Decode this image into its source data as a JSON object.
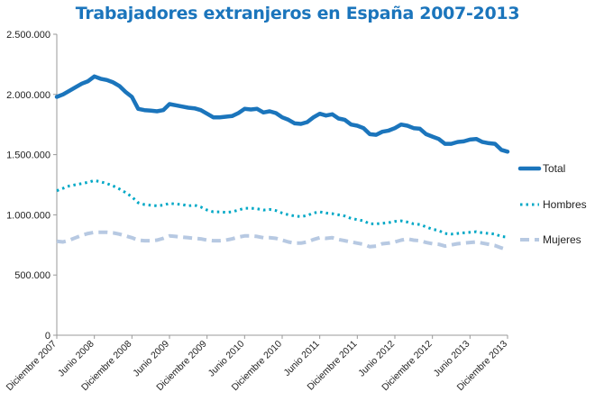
{
  "chart_data": {
    "type": "line",
    "title": "Trabajadores extranjeros en España 2007-2013",
    "xlabel": "",
    "ylabel": "",
    "ylim": [
      0,
      2500000
    ],
    "yticks": [
      0,
      500000,
      1000000,
      1500000,
      2000000,
      2500000
    ],
    "ytick_labels": [
      "0",
      "500.000",
      "1.000.000",
      "1.500.000",
      "2.000.000",
      "2.500.000"
    ],
    "x_range": [
      0,
      72
    ],
    "xticks": [
      0,
      6,
      12,
      18,
      24,
      30,
      36,
      42,
      48,
      54,
      60,
      66,
      72
    ],
    "xtick_labels": [
      "Diciembre 2007",
      "Junio 2008",
      "Diciembre 2008",
      "Junio 2009",
      "Diciembre 2009",
      "Junio 2010",
      "Diciembre 2010",
      "Junio 2011",
      "Diciembre 2011",
      "Junio 2012",
      "Diciembre 2012",
      "Junio 2013",
      "Diciembre 2013"
    ],
    "grid": false,
    "legend_position": "right",
    "series": [
      {
        "name": "Total",
        "color": "#1b75bc",
        "style": "solid",
        "values": [
          1980000,
          2000000,
          2030000,
          2060000,
          2090000,
          2110000,
          2150000,
          2130000,
          2120000,
          2100000,
          2070000,
          2020000,
          1980000,
          1880000,
          1870000,
          1865000,
          1860000,
          1870000,
          1920000,
          1910000,
          1900000,
          1890000,
          1885000,
          1870000,
          1840000,
          1810000,
          1810000,
          1815000,
          1820000,
          1845000,
          1880000,
          1875000,
          1880000,
          1850000,
          1860000,
          1845000,
          1810000,
          1790000,
          1760000,
          1755000,
          1770000,
          1810000,
          1840000,
          1825000,
          1835000,
          1800000,
          1790000,
          1750000,
          1740000,
          1720000,
          1670000,
          1665000,
          1690000,
          1700000,
          1720000,
          1750000,
          1740000,
          1720000,
          1715000,
          1670000,
          1650000,
          1630000,
          1590000,
          1590000,
          1605000,
          1610000,
          1625000,
          1630000,
          1605000,
          1595000,
          1590000,
          1540000,
          1525000
        ]
      },
      {
        "name": "Hombres",
        "color": "#00a8c6",
        "style": "dotted",
        "values": [
          1200000,
          1220000,
          1240000,
          1250000,
          1260000,
          1270000,
          1285000,
          1275000,
          1260000,
          1240000,
          1215000,
          1185000,
          1150000,
          1100000,
          1085000,
          1080000,
          1075000,
          1080000,
          1095000,
          1090000,
          1085000,
          1075000,
          1080000,
          1065000,
          1040000,
          1025000,
          1025000,
          1020000,
          1025000,
          1040000,
          1055000,
          1055000,
          1050000,
          1040000,
          1045000,
          1035000,
          1015000,
          1000000,
          990000,
          985000,
          995000,
          1015000,
          1025000,
          1015000,
          1010000,
          1000000,
          990000,
          970000,
          960000,
          950000,
          925000,
          925000,
          930000,
          935000,
          945000,
          950000,
          940000,
          925000,
          920000,
          900000,
          880000,
          870000,
          845000,
          840000,
          845000,
          850000,
          855000,
          860000,
          850000,
          845000,
          840000,
          820000,
          815000
        ]
      },
      {
        "name": "Mujeres",
        "color": "#b7c9e2",
        "style": "dashed",
        "values": [
          780000,
          775000,
          790000,
          810000,
          830000,
          845000,
          855000,
          855000,
          855000,
          850000,
          840000,
          825000,
          810000,
          790000,
          785000,
          785000,
          790000,
          805000,
          825000,
          820000,
          815000,
          810000,
          805000,
          800000,
          790000,
          785000,
          785000,
          790000,
          800000,
          815000,
          825000,
          825000,
          820000,
          810000,
          810000,
          805000,
          790000,
          775000,
          765000,
          765000,
          775000,
          795000,
          810000,
          805000,
          810000,
          795000,
          785000,
          775000,
          765000,
          755000,
          735000,
          740000,
          760000,
          765000,
          775000,
          790000,
          800000,
          790000,
          785000,
          770000,
          760000,
          755000,
          740000,
          750000,
          760000,
          765000,
          770000,
          775000,
          765000,
          755000,
          745000,
          725000,
          710000
        ]
      }
    ]
  }
}
